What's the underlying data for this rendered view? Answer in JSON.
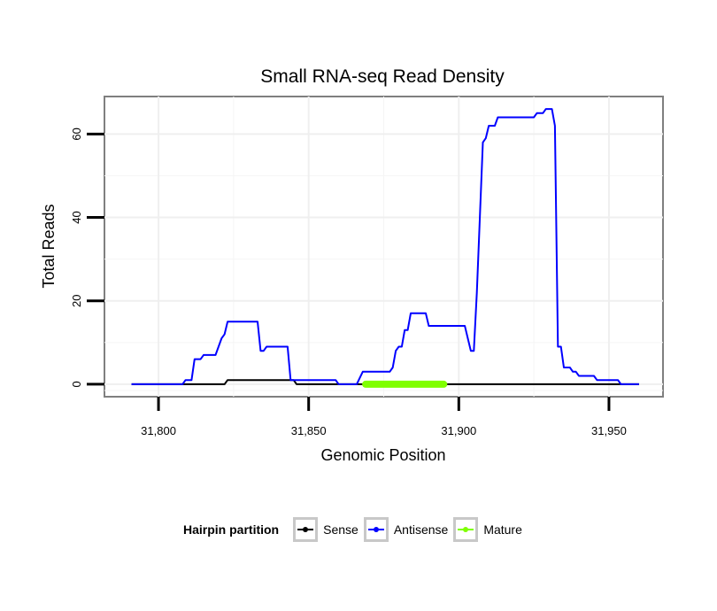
{
  "chart_data": {
    "type": "line",
    "title": "Small RNA-seq Read Density",
    "xlabel": "Genomic Position",
    "ylabel": "Total Reads",
    "xlim": [
      31782,
      31968
    ],
    "ylim": [
      -3,
      69
    ],
    "x_ticks": [
      31800,
      31850,
      31900,
      31950
    ],
    "x_tick_labels": [
      "31,800",
      "31,850",
      "31,900",
      "31,950"
    ],
    "y_ticks": [
      0,
      20,
      40,
      60
    ],
    "y_tick_labels": [
      "0",
      "20",
      "40",
      "60"
    ],
    "grid": true,
    "series": [
      {
        "name": "Sense",
        "color": "#000000",
        "x": [
          31791,
          31822,
          31823,
          31845,
          31846,
          31960
        ],
        "y": [
          0,
          0,
          1,
          1,
          0,
          0
        ]
      },
      {
        "name": "Antisense",
        "color": "#0000ff",
        "x": [
          31791,
          31808,
          31809,
          31811,
          31812,
          31814,
          31815,
          31819,
          31820,
          31821,
          31822,
          31823,
          31833,
          31834,
          31835,
          31836,
          31843,
          31844,
          31859,
          31860,
          31866,
          31868,
          31877,
          31878,
          31879,
          31880,
          31881,
          31882,
          31883,
          31884,
          31885,
          31889,
          31890,
          31891,
          31896,
          31897,
          31902,
          31903,
          31904,
          31905,
          31906,
          31907,
          31908,
          31909,
          31910,
          31912,
          31913,
          31914,
          31915,
          31920,
          31925,
          31926,
          31928,
          31929,
          31931,
          31932,
          31933,
          31934,
          31935,
          31937,
          31938,
          31939,
          31940,
          31941,
          31942,
          31945,
          31946,
          31953,
          31954,
          31960
        ],
        "y": [
          0,
          0,
          1,
          1,
          6,
          6,
          7,
          7,
          9,
          11,
          12,
          15,
          15,
          8,
          8,
          9,
          9,
          1,
          1,
          0,
          0,
          3,
          3,
          4,
          8,
          9,
          9,
          13,
          13,
          17,
          17,
          17,
          14,
          14,
          14,
          14,
          14,
          11,
          8,
          8,
          22,
          40,
          58,
          59,
          62,
          62,
          64,
          64,
          64,
          64,
          64,
          65,
          65,
          66,
          66,
          62,
          9,
          9,
          4,
          4,
          3,
          3,
          2,
          2,
          2,
          2,
          1,
          1,
          0,
          0
        ]
      },
      {
        "name": "Mature",
        "color": "#7fff00",
        "x": [
          31869,
          31895
        ],
        "y": [
          0,
          0
        ]
      }
    ],
    "legend": {
      "title": "Hairpin partition",
      "position": "bottom",
      "items": [
        "Sense",
        "Antisense",
        "Mature"
      ]
    }
  }
}
